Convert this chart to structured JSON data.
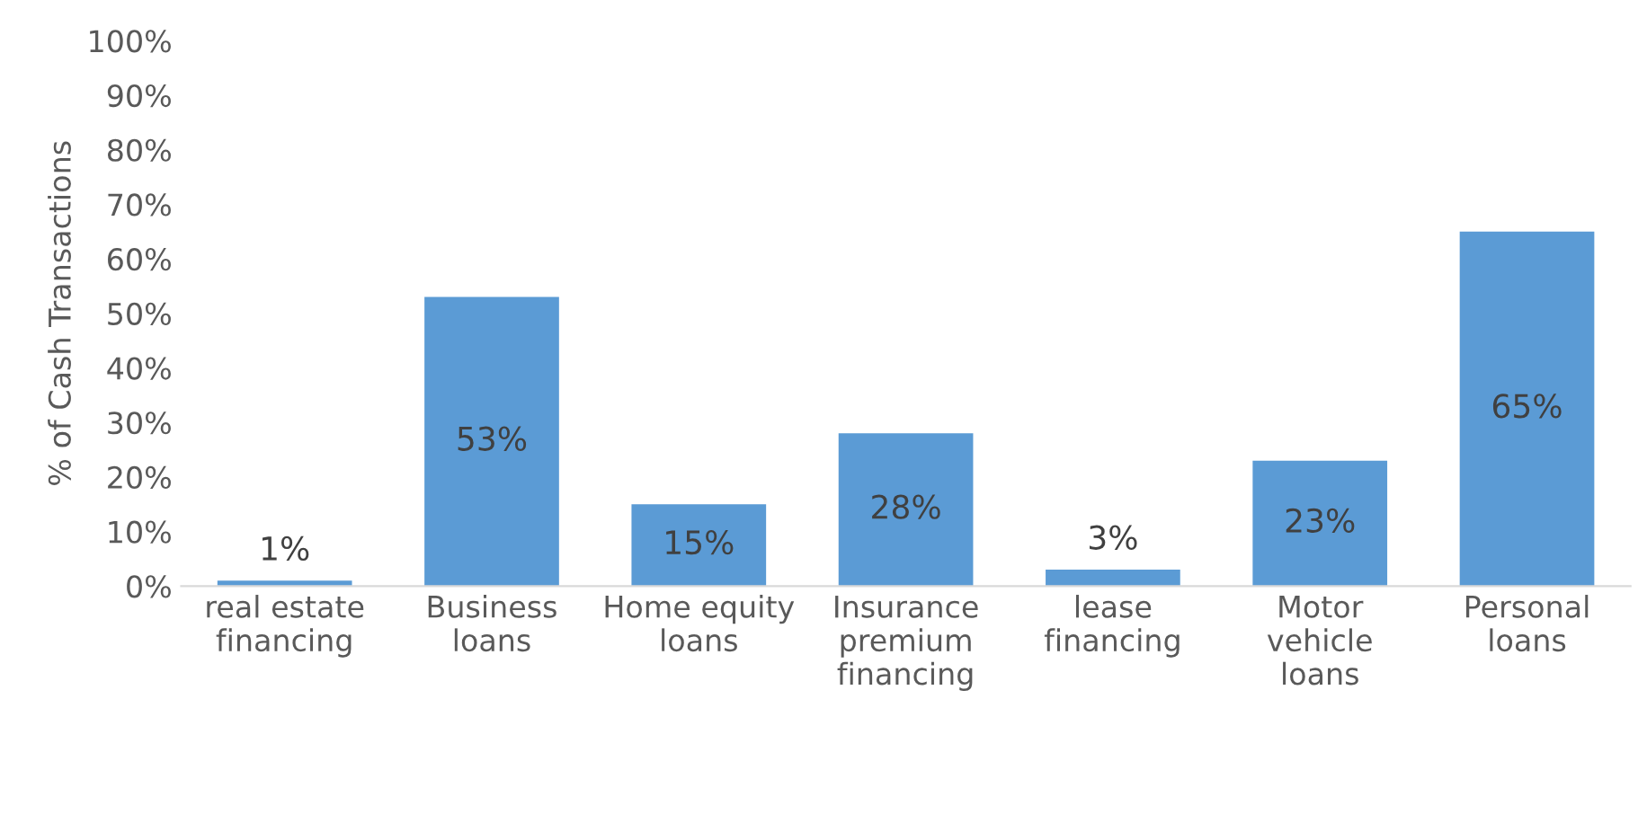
{
  "chart_data": {
    "type": "bar",
    "ylabel": "% of Cash Transactions",
    "categories": [
      "real estate\nfinancing",
      "Business\nloans",
      "Home equity\nloans",
      "Insurance\npremium\nfinancing",
      "lease\nfinancing",
      "Motor\nvehicle\nloans",
      "Personal\nloans"
    ],
    "values": [
      1,
      53,
      15,
      28,
      3,
      23,
      65
    ],
    "color": "#5b9bd5",
    "value_labels": [
      "1%",
      "53%",
      "15%",
      "28%",
      "3%",
      "23%",
      "65%"
    ],
    "ylim": [
      0,
      100
    ],
    "yticks": [
      {
        "value": 0,
        "label": "0%"
      },
      {
        "value": 10,
        "label": "10%"
      },
      {
        "value": 20,
        "label": "20%"
      },
      {
        "value": 30,
        "label": "30%"
      },
      {
        "value": 40,
        "label": "40%"
      },
      {
        "value": 50,
        "label": "50%"
      },
      {
        "value": 60,
        "label": "60%"
      },
      {
        "value": 70,
        "label": "70%"
      },
      {
        "value": 80,
        "label": "80%"
      },
      {
        "value": 90,
        "label": "90%"
      },
      {
        "value": 100,
        "label": "100%"
      }
    ],
    "grid": false
  }
}
